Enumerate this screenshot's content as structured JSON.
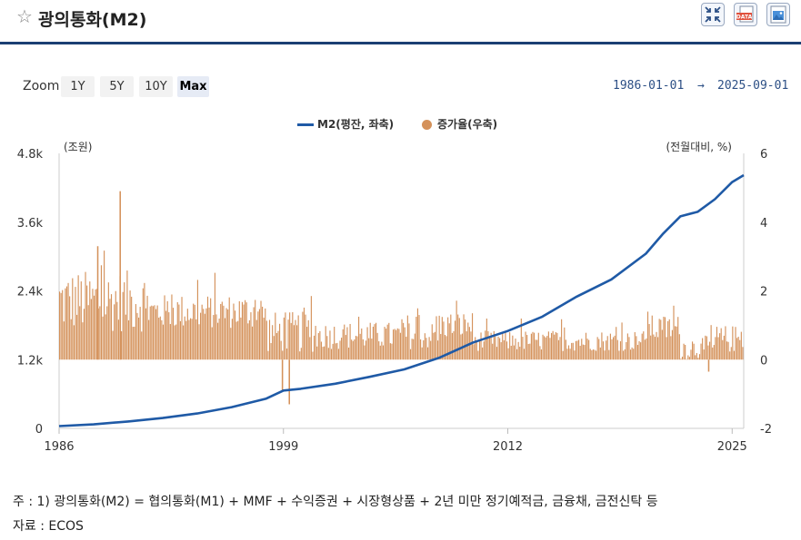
{
  "header": {
    "title": "광의통화(M2)",
    "icons": [
      "star-icon",
      "collapse-icon",
      "data-download-icon",
      "image-download-icon"
    ],
    "data_badge": "DATA"
  },
  "zoom": {
    "label": "Zoom",
    "buttons": [
      "1Y",
      "5Y",
      "10Y",
      "Max"
    ],
    "active": "Max"
  },
  "range": {
    "from": "1986-01-01",
    "arrow": "→",
    "to": "2025-09-01"
  },
  "chart_data": {
    "type": "bar+line",
    "title": "광의통화(M2)",
    "legend": [
      {
        "name": "M2(평잔, 좌축)",
        "color": "#1f5aa6",
        "marker": "line"
      },
      {
        "name": "증가율(우축)",
        "color": "#d4915a",
        "marker": "circle"
      }
    ],
    "left_axis": {
      "unit": "(조원)",
      "ticks": [
        "0",
        "1.2k",
        "2.4k",
        "3.6k",
        "4.8k"
      ],
      "min": 0,
      "max": 4800
    },
    "right_axis": {
      "unit": "(전월대비, %)",
      "ticks": [
        "-2",
        "0",
        "2",
        "4",
        "6"
      ],
      "min": -2,
      "max": 6
    },
    "x_axis": {
      "ticks": [
        "1986",
        "1999",
        "2012",
        "2025"
      ],
      "min": 1986,
      "max": 2025.67
    },
    "m2_line": {
      "name": "M2(평잔, 좌축)",
      "points": [
        [
          1986,
          40
        ],
        [
          1988,
          70
        ],
        [
          1990,
          120
        ],
        [
          1992,
          180
        ],
        [
          1994,
          260
        ],
        [
          1996,
          370
        ],
        [
          1998,
          520
        ],
        [
          1999,
          660
        ],
        [
          2000,
          690
        ],
        [
          2002,
          780
        ],
        [
          2004,
          900
        ],
        [
          2006,
          1030
        ],
        [
          2008,
          1230
        ],
        [
          2010,
          1500
        ],
        [
          2012,
          1700
        ],
        [
          2014,
          1950
        ],
        [
          2016,
          2300
        ],
        [
          2018,
          2600
        ],
        [
          2020,
          3050
        ],
        [
          2021,
          3400
        ],
        [
          2022,
          3700
        ],
        [
          2023,
          3780
        ],
        [
          2024,
          4000
        ],
        [
          2025,
          4300
        ],
        [
          2025.67,
          4420
        ]
      ]
    },
    "growth_bars": {
      "name": "증가율(우축)",
      "unit": "%",
      "periods": [
        {
          "from": 1986,
          "to": 1991,
          "mean": 1.7,
          "spread": 0.9
        },
        {
          "from": 1991,
          "to": 1998,
          "mean": 1.4,
          "spread": 0.5
        },
        {
          "from": 1998,
          "to": 2001,
          "mean": 0.8,
          "spread": 0.6
        },
        {
          "from": 2001,
          "to": 2008,
          "mean": 0.7,
          "spread": 0.4
        },
        {
          "from": 2008,
          "to": 2010,
          "mean": 1.0,
          "spread": 0.4
        },
        {
          "from": 2010,
          "to": 2020,
          "mean": 0.55,
          "spread": 0.3
        },
        {
          "from": 2020,
          "to": 2022,
          "mean": 0.9,
          "spread": 0.4
        },
        {
          "from": 2022,
          "to": 2024,
          "mean": 0.35,
          "spread": 0.35
        },
        {
          "from": 2024,
          "to": 2025.67,
          "mean": 0.6,
          "spread": 0.4
        }
      ],
      "highlights": [
        {
          "x": 1989.5,
          "value": 4.9
        },
        {
          "x": 1988.2,
          "value": 3.3
        },
        {
          "x": 1999.3,
          "value": -1.3
        },
        {
          "x": 1998.9,
          "value": -0.9
        },
        {
          "x": 2023.6,
          "value": -0.35
        }
      ]
    }
  },
  "notes": {
    "footnote": "주 : 1) 광의통화(M2) = 협의통화(M1) + MMF + 수익증권 + 시장형상품 + 2년 미만 정기예적금, 금융채, 금전신탁 등",
    "source": "자료 : ECOS"
  }
}
